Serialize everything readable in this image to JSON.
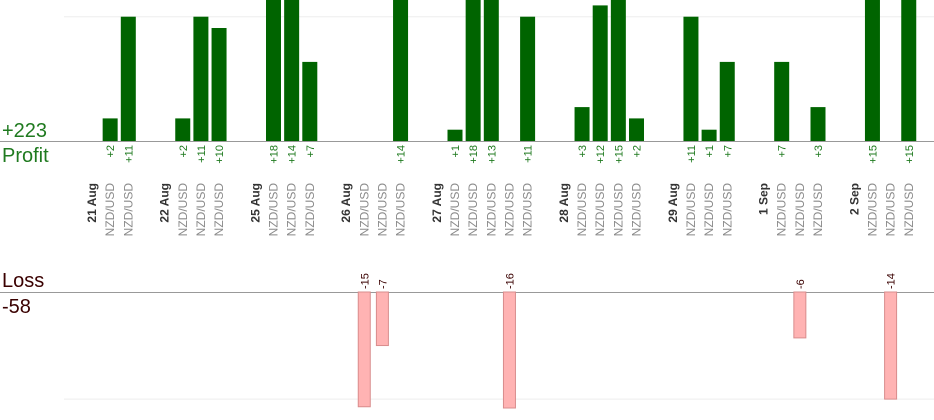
{
  "summary": {
    "profit_total": "+223",
    "profit_label": "Profit",
    "loss_label": "Loss",
    "loss_total": "-58"
  },
  "colors": {
    "profit_bar": "#006400",
    "profit_text": "#1f7a1f",
    "loss_bar": "#ffb3b3",
    "loss_bar_border": "#d98c8c",
    "loss_text": "#3a0000",
    "symbol_text": "#8a8a8a",
    "date_text": "#333333",
    "axis": "#999999",
    "grid": "#eeeeee"
  },
  "chart_data": {
    "type": "bar",
    "title": "",
    "xlabel": "",
    "ylabel": "",
    "profit_axis_max": 11,
    "loss_axis_max": 10,
    "grid": true,
    "categories": [
      {
        "kind": "date",
        "text": "21 Aug"
      },
      {
        "kind": "trade",
        "text": "NZD/USD",
        "profit": 2
      },
      {
        "kind": "trade",
        "text": "NZD/USD",
        "profit": 11
      },
      {
        "kind": "gap"
      },
      {
        "kind": "date",
        "text": "22 Aug"
      },
      {
        "kind": "trade",
        "text": "NZD/USD",
        "profit": 2
      },
      {
        "kind": "trade",
        "text": "NZD/USD",
        "profit": 11
      },
      {
        "kind": "trade",
        "text": "NZD/USD",
        "profit": 10
      },
      {
        "kind": "gap"
      },
      {
        "kind": "date",
        "text": "25 Aug"
      },
      {
        "kind": "trade",
        "text": "NZD/USD",
        "profit": 18
      },
      {
        "kind": "trade",
        "text": "NZD/USD",
        "profit": 14
      },
      {
        "kind": "trade",
        "text": "NZD/USD",
        "profit": 7
      },
      {
        "kind": "gap"
      },
      {
        "kind": "date",
        "text": "26 Aug"
      },
      {
        "kind": "trade",
        "text": "NZD/USD",
        "loss": -15
      },
      {
        "kind": "trade",
        "text": "NZD/USD",
        "loss": -7
      },
      {
        "kind": "trade",
        "text": "NZD/USD",
        "profit": 14
      },
      {
        "kind": "gap"
      },
      {
        "kind": "date",
        "text": "27 Aug"
      },
      {
        "kind": "trade",
        "text": "NZD/USD",
        "profit": 1
      },
      {
        "kind": "trade",
        "text": "NZD/USD",
        "profit": 18
      },
      {
        "kind": "trade",
        "text": "NZD/USD",
        "profit": 13
      },
      {
        "kind": "trade",
        "text": "NZD/USD",
        "loss": -16
      },
      {
        "kind": "trade",
        "text": "NZD/USD",
        "profit": 11
      },
      {
        "kind": "gap"
      },
      {
        "kind": "date",
        "text": "28 Aug"
      },
      {
        "kind": "trade",
        "text": "NZD/USD",
        "profit": 3
      },
      {
        "kind": "trade",
        "text": "NZD/USD",
        "profit": 12
      },
      {
        "kind": "trade",
        "text": "NZD/USD",
        "profit": 15
      },
      {
        "kind": "trade",
        "text": "NZD/USD",
        "profit": 2
      },
      {
        "kind": "gap"
      },
      {
        "kind": "date",
        "text": "29 Aug"
      },
      {
        "kind": "trade",
        "text": "NZD/USD",
        "profit": 11
      },
      {
        "kind": "trade",
        "text": "NZD/USD",
        "profit": 1
      },
      {
        "kind": "trade",
        "text": "NZD/USD",
        "profit": 7
      },
      {
        "kind": "gap"
      },
      {
        "kind": "date",
        "text": "1 Sep"
      },
      {
        "kind": "trade",
        "text": "NZD/USD",
        "profit": 7
      },
      {
        "kind": "trade",
        "text": "NZD/USD",
        "loss": -6
      },
      {
        "kind": "trade",
        "text": "NZD/USD",
        "profit": 3
      },
      {
        "kind": "gap"
      },
      {
        "kind": "date",
        "text": "2 Sep"
      },
      {
        "kind": "trade",
        "text": "NZD/USD",
        "profit": 15
      },
      {
        "kind": "trade",
        "text": "NZD/USD",
        "loss": -14
      },
      {
        "kind": "trade",
        "text": "NZD/USD",
        "profit": 15
      }
    ]
  }
}
